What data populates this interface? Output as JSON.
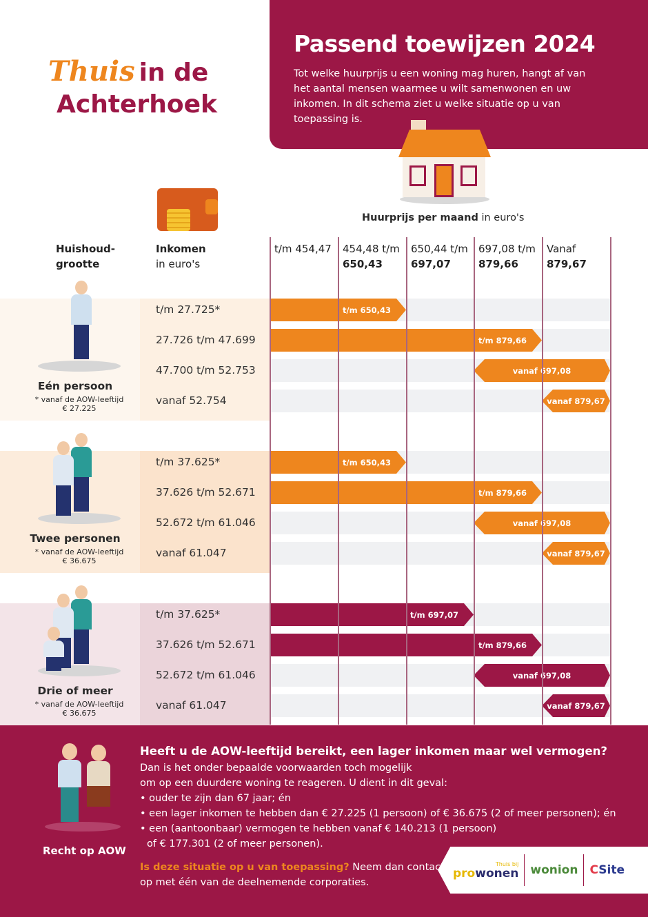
{
  "header": {
    "title": "Passend toewijzen 2024",
    "intro": "Tot welke huurprijs u een woning mag huren, hangt af van het aantal mensen waarmee u wilt samenwonen en uw inkomen. In dit schema ziet u welke situatie op u van toepassing is."
  },
  "logo": {
    "line1": "Thuis",
    "line2": "in de",
    "line3": "Achterhoek"
  },
  "rent_header": {
    "bold": "Huurprijs per maand",
    "rest": " in euro's"
  },
  "columns": {
    "household": [
      "Huishoud-",
      "grootte"
    ],
    "income": [
      "Inkomen",
      "in euro's"
    ],
    "rent": [
      [
        "t/m 454,47",
        ""
      ],
      [
        "454,48 t/m",
        "650,43"
      ],
      [
        "650,44 t/m",
        "697,07"
      ],
      [
        "697,08 t/m",
        "879,66"
      ],
      [
        "Vanaf",
        "879,67"
      ]
    ]
  },
  "colors": {
    "maroon": "#9c1746",
    "orange": "#ee861e"
  },
  "groups": [
    {
      "name": "Eén persoon",
      "note": "* vanaf de AOW-leeftijd",
      "note_amount": "€ 27.225",
      "bar_color": "#ee861e",
      "rows": [
        {
          "income": "t/m 27.725*",
          "bar": "t/m 650,43",
          "from": 0,
          "to": 2
        },
        {
          "income": "27.726 t/m 47.699",
          "bar": "t/m 879,66",
          "from": 0,
          "to": 4
        },
        {
          "income": "47.700 t/m 52.753",
          "bar": "vanaf 697,08",
          "from": 3,
          "to": 5
        },
        {
          "income": "vanaf 52.754",
          "bar": "vanaf 879,67",
          "from": 4,
          "to": 5
        }
      ]
    },
    {
      "name": "Twee personen",
      "note": "* vanaf de AOW-leeftijd",
      "note_amount": "€ 36.675",
      "bar_color": "#ee861e",
      "rows": [
        {
          "income": "t/m 37.625*",
          "bar": "t/m 650,43",
          "from": 0,
          "to": 2
        },
        {
          "income": "37.626 t/m 52.671",
          "bar": "t/m 879,66",
          "from": 0,
          "to": 4
        },
        {
          "income": "52.672 t/m 61.046",
          "bar": "vanaf 697,08",
          "from": 3,
          "to": 5
        },
        {
          "income": "vanaf 61.047",
          "bar": "vanaf 879,67",
          "from": 4,
          "to": 5
        }
      ]
    },
    {
      "name": "Drie of meer",
      "note": "* vanaf de AOW-leeftijd",
      "note_amount": "€ 36.675",
      "bar_color": "#9c1746",
      "rows": [
        {
          "income": "t/m 37.625*",
          "bar": "t/m 697,07",
          "from": 0,
          "to": 3
        },
        {
          "income": "37.626 t/m 52.671",
          "bar": "t/m 879,66",
          "from": 0,
          "to": 4
        },
        {
          "income": "52.672 t/m 61.046",
          "bar": "vanaf 697,08",
          "from": 3,
          "to": 5
        },
        {
          "income": "vanaf 61.047",
          "bar": "vanaf 879,67",
          "from": 4,
          "to": 5
        }
      ]
    }
  ],
  "aow": {
    "label": "Recht op AOW",
    "question": "Heeft u de AOW-leeftijd bereikt, een lager inkomen maar wel vermogen?",
    "lines": [
      "Dan is het onder bepaalde voorwaarden toch mogelijk",
      "om op een duurdere woning te reageren. U dient in dit geval:",
      "• ouder te zijn dan 67 jaar; én",
      "• een lager inkomen te hebben dan € 27.225 (1 persoon) of € 36.675 (2 of meer personen); én",
      "• een (aantoonbaar) vermogen te hebben vanaf € 140.213 (1 persoon)",
      "   of € 177.301 (2 of meer personen)."
    ],
    "contact_highlight": "Is deze situatie op u van toepassing?",
    "contact_rest": " Neem dan contact",
    "contact_line2": " op met één van de deelnemende corporaties."
  },
  "partners": {
    "prowonen_tag": "Thuis bij",
    "prowonen_pro": "pro",
    "prowonen_wonen": "wonen",
    "wonion": "wonion",
    "site": "Site"
  }
}
